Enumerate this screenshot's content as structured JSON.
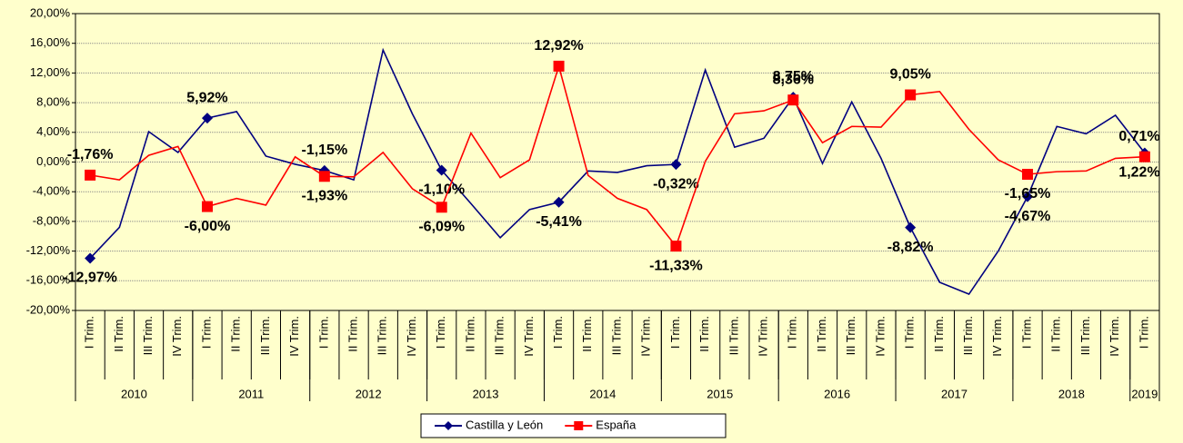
{
  "chart_data": {
    "type": "line",
    "categories": [
      "I Trim.",
      "II Trim.",
      "III Trim.",
      "IV Trim.",
      "I Trim.",
      "II Trim.",
      "III Trim.",
      "IV Trim.",
      "I Trim.",
      "II Trim.",
      "III Trim.",
      "IV Trim.",
      "I Trim.",
      "II Trim.",
      "III Trim.",
      "IV Trim.",
      "I Trim.",
      "II Trim.",
      "III Trim.",
      "IV Trim.",
      "I Trim.",
      "II Trim.",
      "III Trim.",
      "IV Trim.",
      "I Trim.",
      "II Trim.",
      "III Trim.",
      "IV Trim.",
      "I Trim.",
      "II Trim.",
      "III Trim.",
      "IV Trim.",
      "I Trim.",
      "II Trim.",
      "III Trim.",
      "IV Trim.",
      "I Trim."
    ],
    "years": [
      "2010",
      "2011",
      "2012",
      "2013",
      "2014",
      "2015",
      "2016",
      "2017",
      "2018",
      "2019"
    ],
    "series": [
      {
        "name": "Castilla y León",
        "color": "#000080",
        "marker": "diamond",
        "values": [
          -12.97,
          -8.8,
          4.1,
          1.3,
          5.92,
          6.8,
          0.8,
          -0.3,
          -1.15,
          -2.4,
          15.1,
          6.5,
          -1.1,
          -5.6,
          -10.2,
          -6.4,
          -5.41,
          -1.2,
          -1.4,
          -0.5,
          -0.32,
          12.4,
          2.0,
          3.2,
          8.75,
          -0.2,
          8.1,
          0.5,
          -8.82,
          -16.2,
          -17.8,
          -12.0,
          -4.67,
          4.8,
          3.8,
          6.3,
          1.22
        ],
        "value_labels": [
          "-12,97%",
          null,
          null,
          null,
          "5,92%",
          null,
          null,
          null,
          "-1,15%",
          null,
          null,
          null,
          "-1,10%",
          null,
          null,
          null,
          "-5,41%",
          null,
          null,
          null,
          "-0,32%",
          null,
          null,
          null,
          "8,75%",
          null,
          null,
          null,
          "-8,82%",
          null,
          null,
          null,
          "-4,67%",
          null,
          null,
          null,
          "1,22%"
        ]
      },
      {
        "name": "España",
        "color": "#ff0000",
        "marker": "square",
        "values": [
          -1.76,
          -2.4,
          0.9,
          2.1,
          -6.0,
          -4.9,
          -5.8,
          0.7,
          -1.93,
          -2.0,
          1.3,
          -3.6,
          -6.09,
          3.9,
          -2.1,
          0.3,
          12.92,
          -1.8,
          -4.9,
          -6.4,
          -11.33,
          0.1,
          6.5,
          6.9,
          8.36,
          2.6,
          4.8,
          4.7,
          9.05,
          9.5,
          4.4,
          0.3,
          -1.65,
          -1.3,
          -1.2,
          0.5,
          0.71
        ],
        "value_labels": [
          "-1,76%",
          null,
          null,
          null,
          "-6,00%",
          null,
          null,
          null,
          "-1,93%",
          null,
          null,
          null,
          "-6,09%",
          null,
          null,
          null,
          "12,92%",
          null,
          null,
          null,
          "-11,33%",
          null,
          null,
          null,
          "8,36%",
          null,
          null,
          null,
          "9,05%",
          null,
          null,
          null,
          "-1,65%",
          null,
          null,
          null,
          "0,71%"
        ]
      }
    ],
    "ylim": [
      -20,
      20
    ],
    "yticks": [
      {
        "value": -20,
        "label": "-20,00%"
      },
      {
        "value": -16,
        "label": "-16,00%"
      },
      {
        "value": -12,
        "label": "-12,00%"
      },
      {
        "value": -8,
        "label": "-8,00%"
      },
      {
        "value": -4,
        "label": "-4,00%"
      },
      {
        "value": 0,
        "label": "0,00%"
      },
      {
        "value": 4,
        "label": "4,00%"
      },
      {
        "value": 8,
        "label": "8,00%"
      },
      {
        "value": 12,
        "label": "12,00%"
      },
      {
        "value": 16,
        "label": "16,00%"
      },
      {
        "value": 20,
        "label": "20,00%"
      }
    ],
    "grid": true,
    "legend": "bottom"
  }
}
